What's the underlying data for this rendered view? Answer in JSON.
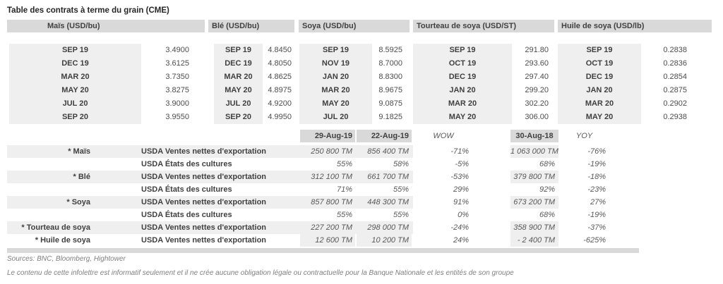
{
  "title": "Table des contrats à terme du grain (CME)",
  "futures": {
    "groups": [
      {
        "id": "mais",
        "header": "Maïs (USD/bu)",
        "contracts": [
          {
            "month": "SEP 19",
            "price": "3.4900"
          },
          {
            "month": "DEC 19",
            "price": "3.6125"
          },
          {
            "month": "MAR 20",
            "price": "3.7350"
          },
          {
            "month": "MAY 20",
            "price": "3.8275"
          },
          {
            "month": "JUL 20",
            "price": "3.9000"
          },
          {
            "month": "SEP 20",
            "price": "3.9550"
          }
        ]
      },
      {
        "id": "ble",
        "header": "Blé (USD/bu)",
        "contracts": [
          {
            "month": "SEP 19",
            "price": "4.8450"
          },
          {
            "month": "DEC 19",
            "price": "4.8050"
          },
          {
            "month": "MAR 20",
            "price": "4.8625"
          },
          {
            "month": "MAY 20",
            "price": "4.8975"
          },
          {
            "month": "JUL 20",
            "price": "4.9200"
          },
          {
            "month": "SEP 20",
            "price": "4.9950"
          }
        ]
      },
      {
        "id": "soya",
        "header": "Soya (USD/bu)",
        "contracts": [
          {
            "month": "SEP 19",
            "price": "8.5925"
          },
          {
            "month": "NOV 19",
            "price": "8.7000"
          },
          {
            "month": "JAN 20",
            "price": "8.8300"
          },
          {
            "month": "MAR 20",
            "price": "8.9675"
          },
          {
            "month": "MAY 20",
            "price": "9.0875"
          },
          {
            "month": "JUL 20",
            "price": "9.1825"
          }
        ]
      },
      {
        "id": "tourteau",
        "header": "Tourteau de soya (USD/ST)",
        "contracts": [
          {
            "month": "SEP 19",
            "price": "291.80"
          },
          {
            "month": "OCT 19",
            "price": "293.60"
          },
          {
            "month": "DEC 19",
            "price": "297.40"
          },
          {
            "month": "JAN 20",
            "price": "299.20"
          },
          {
            "month": "MAR 20",
            "price": "302.20"
          },
          {
            "month": "MAY 20",
            "price": "306.00"
          }
        ]
      },
      {
        "id": "huile",
        "header": "Huile de soya (USD/lb)",
        "contracts": [
          {
            "month": "SEP 19",
            "price": "0.2838"
          },
          {
            "month": "OCT 19",
            "price": "0.2836"
          },
          {
            "month": "DEC 19",
            "price": "0.2854"
          },
          {
            "month": "JAN 20",
            "price": "0.2875"
          },
          {
            "month": "MAR 20",
            "price": "0.2902"
          },
          {
            "month": "MAY 20",
            "price": "0.2938"
          }
        ]
      }
    ]
  },
  "usda": {
    "headers": {
      "col1": "29-Aug-19",
      "col2": "22-Aug-19",
      "wow": "WOW",
      "col4": "30-Aug-18",
      "yoy": "YOY"
    },
    "rows": [
      {
        "product": "* Maïs",
        "metric": "USDA Ventes nettes d'exportation",
        "c1": "250 800 TM",
        "c2": "856 400 TM",
        "wow": "-71%",
        "c4": "1 063 000 TM",
        "yoy": "-76%"
      },
      {
        "product": "",
        "metric": "USDA États des cultures",
        "c1": "55%",
        "c2": "58%",
        "wow": "-5%",
        "c4": "68%",
        "yoy": "-19%"
      },
      {
        "product": "* Blé",
        "metric": "USDA Ventes nettes d'exportation",
        "c1": "312 100 TM",
        "c2": "661 700 TM",
        "wow": "-53%",
        "c4": "379 800 TM",
        "yoy": "-18%"
      },
      {
        "product": "",
        "metric": "USDA États des cultures",
        "c1": "71%",
        "c2": "55%",
        "wow": "29%",
        "c4": "92%",
        "yoy": "-23%"
      },
      {
        "product": "* Soya",
        "metric": "USDA Ventes nettes d'exportation",
        "c1": "857 800 TM",
        "c2": "448 300 TM",
        "wow": "91%",
        "c4": "673 200 TM",
        "yoy": "27%"
      },
      {
        "product": "",
        "metric": "USDA États des cultures",
        "c1": "55%",
        "c2": "55%",
        "wow": "0%",
        "c4": "68%",
        "yoy": "-19%"
      },
      {
        "product": "* Tourteau de soya",
        "metric": "USDA Ventes nettes d'exportation",
        "c1": "227 200 TM",
        "c2": "298 000 TM",
        "wow": "-24%",
        "c4": "358 900 TM",
        "yoy": "-37%"
      },
      {
        "product": "* Huile de soya",
        "metric": "USDA Ventes nettes d'exportation",
        "c1": "12 600 TM",
        "c2": "10 200 TM",
        "wow": "24%",
        "c4": "- 2 400 TM",
        "yoy": "-625%"
      }
    ]
  },
  "footer": {
    "sources": "Sources: BNC, Bloomberg, Hightower",
    "disclaimer": "Le contenu de cette infolettre est informatif seulement et il ne crée aucune obligation légale ou contractuelle pour la Banque Nationale et les entités de son groupe"
  },
  "colors": {
    "header_gray": "#d9d9d9",
    "stripe_gray": "#efefef"
  }
}
